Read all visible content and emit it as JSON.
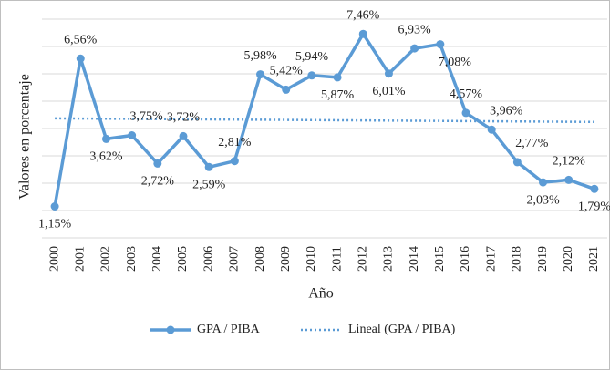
{
  "chart_data": {
    "type": "line",
    "x_label": "Año",
    "y_label": "Valores en porcentaje",
    "categories": [
      "2000",
      "2001",
      "2002",
      "2003",
      "2004",
      "2005",
      "2006",
      "2007",
      "2008",
      "2009",
      "2010",
      "2011",
      "2012",
      "2013",
      "2014",
      "2015",
      "2016",
      "2017",
      "2018",
      "2019",
      "2020",
      "2021"
    ],
    "series": [
      {
        "name": "GPA / PIBA",
        "color": "#5b9bd5",
        "values": [
          1.15,
          6.56,
          3.62,
          3.75,
          2.72,
          3.72,
          2.59,
          2.81,
          5.98,
          5.42,
          5.94,
          5.87,
          7.46,
          6.01,
          6.93,
          7.08,
          4.57,
          3.96,
          2.77,
          2.03,
          2.12,
          1.79
        ],
        "value_labels": [
          "1,15%",
          "6,56%",
          "3,62%",
          "3,75%",
          "2,72%",
          "3,72%",
          "2,59%",
          "2,81%",
          "5,98%",
          "5,42%",
          "5,94%",
          "5,87%",
          "7,46%",
          "6,01%",
          "6,93%",
          "7,08%",
          "4,57%",
          "3,96%",
          "2,77%",
          "2,03%",
          "2,12%",
          "1,79%"
        ]
      }
    ],
    "trendline": {
      "name": "Lineal (GPA / PIBA)",
      "color": "#5b9bd5",
      "start": 4.37,
      "end": 4.24
    },
    "ylim": [
      0,
      8
    ],
    "yticks": [
      0,
      1,
      2,
      3,
      4,
      5,
      6,
      7,
      8
    ],
    "grid": true
  }
}
